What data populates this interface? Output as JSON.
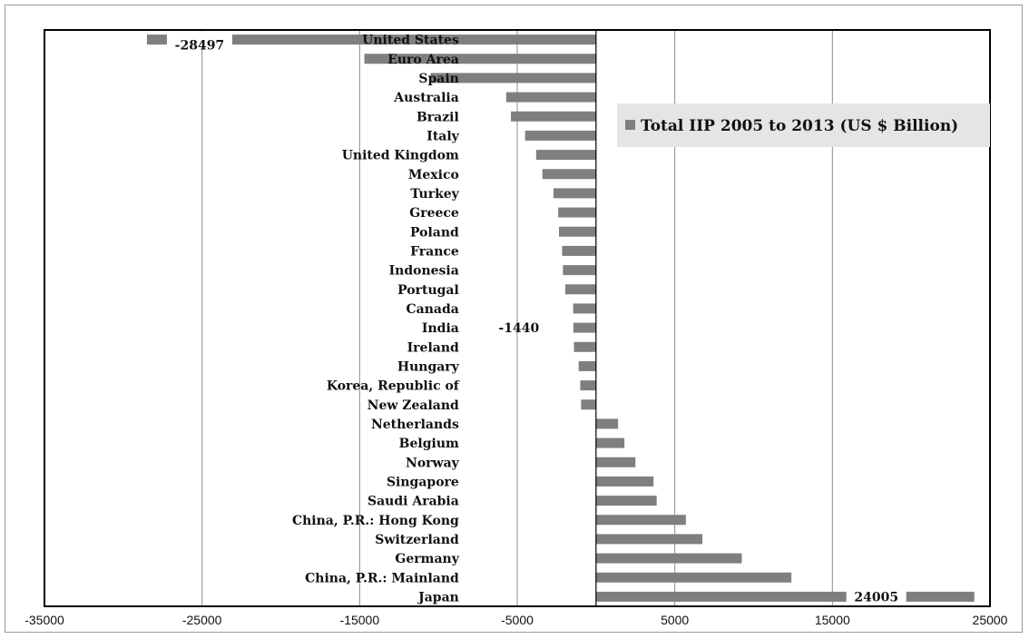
{
  "chart_data": {
    "type": "bar",
    "orientation": "horizontal",
    "categories": [
      "United States",
      "Euro Area",
      "Spain",
      "Australia",
      "Brazil",
      "Italy",
      "United Kingdom",
      "Mexico",
      "Turkey",
      "Greece",
      "Poland",
      "France",
      "Indonesia",
      "Portugal",
      "Canada",
      "India",
      "Ireland",
      "Hungary",
      "Korea, Republic of",
      "New Zealand",
      "Netherlands",
      "Belgium",
      "Norway",
      "Singapore",
      "Saudi Arabia",
      "China, P.R.: Hong Kong",
      "Switzerland",
      "Germany",
      "China, P.R.: Mainland",
      "Japan"
    ],
    "series": [
      {
        "name": "Total IIP 2005 to 2013 (US $ Billion)",
        "values": [
          -28497,
          -14700,
          -10500,
          -5700,
          -5400,
          -4500,
          -3800,
          -3400,
          -2700,
          -2400,
          -2350,
          -2150,
          -2100,
          -1950,
          -1450,
          -1440,
          -1400,
          -1100,
          -1000,
          -950,
          1400,
          1800,
          2500,
          3650,
          3850,
          5700,
          6750,
          9250,
          12400,
          24005
        ]
      }
    ],
    "data_labels": [
      {
        "category": "United States",
        "text": "-28497"
      },
      {
        "category": "India",
        "text": "-1440"
      },
      {
        "category": "Japan",
        "text": "24005"
      }
    ],
    "xlim": [
      -35000,
      25000
    ],
    "x_ticks": [
      "-35000",
      "-25000",
      "-15000",
      "-5000",
      "5000",
      "15000",
      "25000"
    ],
    "legend_position": "top-right",
    "grid": "vertical",
    "bar_color": "#7f7f7f",
    "legend_bg": "#e5e5e5"
  }
}
